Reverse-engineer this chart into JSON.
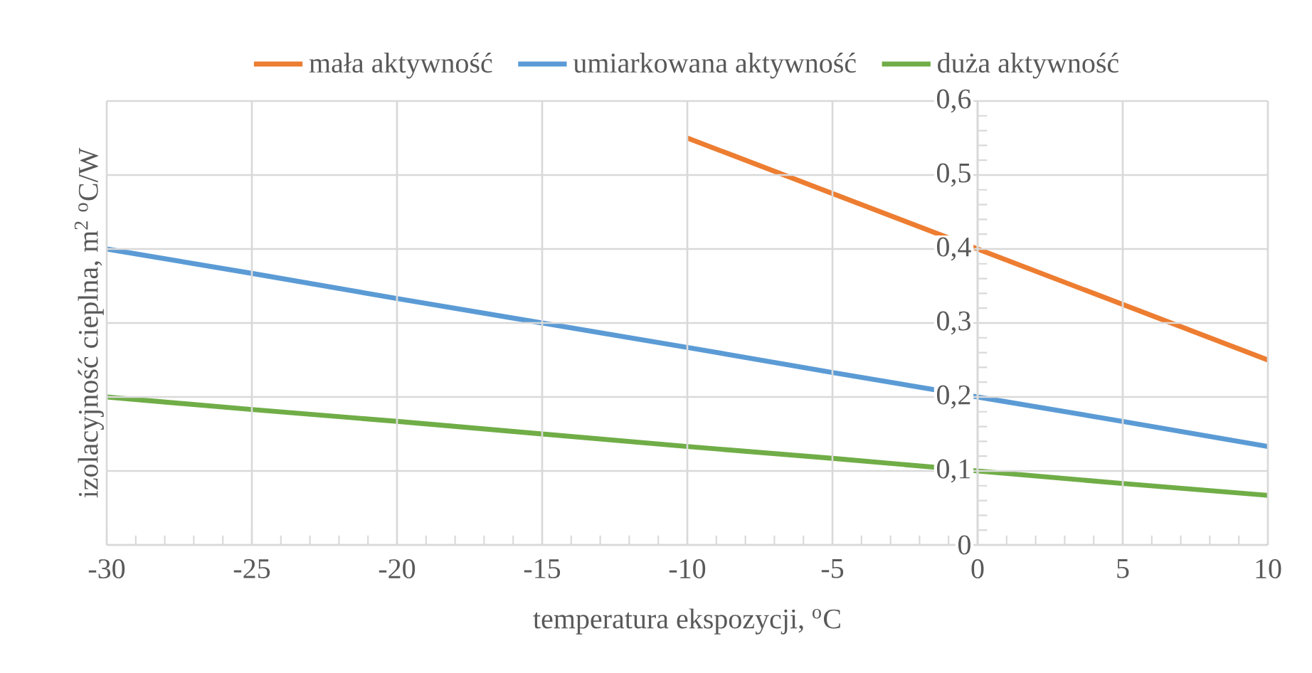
{
  "chart_data": {
    "type": "line",
    "xlabel": "temperatura ekspozycji, $^{o}$C",
    "ylabel": "izolacyjność cieplna, m$^{2}$ $^{o}$C/W",
    "xlim": [
      -30,
      10
    ],
    "xticks": [
      -30,
      -25,
      -20,
      -15,
      -10,
      -5,
      0,
      5,
      10
    ],
    "ylim": [
      0,
      0.6
    ],
    "yticks": [
      {
        "value": 0,
        "label": "0"
      },
      {
        "value": 0.1,
        "label": "0,1"
      },
      {
        "value": 0.2,
        "label": "0,2"
      },
      {
        "value": 0.3,
        "label": "0,3"
      },
      {
        "value": 0.4,
        "label": "0,4"
      },
      {
        "value": 0.5,
        "label": "0,5"
      },
      {
        "value": 0.6,
        "label": "0,6"
      }
    ],
    "grid": true,
    "legend": "top",
    "marker": "none",
    "line_style": "solid",
    "series": [
      {
        "name": "mała aktywność",
        "color": "#ed7d31",
        "x": [
          -10,
          -5,
          0,
          5,
          10
        ],
        "values": [
          0.55,
          0.475,
          0.4,
          0.325,
          0.25
        ]
      },
      {
        "name": "umiarkowana aktywność",
        "color": "#5b9bd5",
        "x": [
          -30,
          -25,
          -20,
          -15,
          -10,
          -5,
          0,
          5,
          10
        ],
        "values": [
          0.4,
          0.367,
          0.333,
          0.3,
          0.267,
          0.233,
          0.2,
          0.167,
          0.133
        ]
      },
      {
        "name": "duża aktywność",
        "color": "#70ad47",
        "x": [
          -30,
          -25,
          -20,
          -15,
          -10,
          -5,
          0,
          5,
          10
        ],
        "values": [
          0.2,
          0.183,
          0.167,
          0.15,
          0.133,
          0.117,
          0.1,
          0.083,
          0.067
        ]
      }
    ]
  }
}
